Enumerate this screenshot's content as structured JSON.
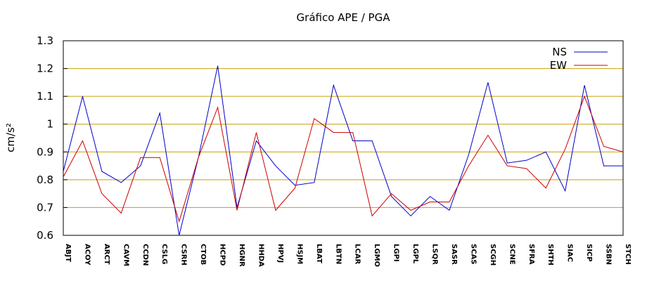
{
  "chart_data": {
    "type": "line",
    "title": "Gráfico  APE / PGA",
    "y_label": "cm/s²",
    "categories": [
      "ABJT",
      "ACOY",
      "ARCT",
      "CAVM",
      "CCDN",
      "CSLG",
      "CSRH",
      "CTOB",
      "HCPD",
      "HGNR",
      "HHDA",
      "HPVJ",
      "HSJM",
      "LBAT",
      "LBTN",
      "LCAR",
      "LGMO",
      "LGPI",
      "LGPL",
      "LSQR",
      "SASR",
      "SCAS",
      "SCGH",
      "SCNE",
      "SFRA",
      "SHTH",
      "SIAC",
      "SICP",
      "SSBN",
      "STCH"
    ],
    "series": [
      {
        "name": "NS",
        "color": "#0000cc",
        "values": [
          0.83,
          1.1,
          0.83,
          0.79,
          0.85,
          1.04,
          0.6,
          0.88,
          1.21,
          0.7,
          0.94,
          0.85,
          0.78,
          0.79,
          1.14,
          0.94,
          0.94,
          0.74,
          0.67,
          0.74,
          0.69,
          0.89,
          1.15,
          0.86,
          0.87,
          0.9,
          0.76,
          1.14,
          0.85,
          0.85
        ]
      },
      {
        "name": "EW",
        "color": "#cc0000",
        "values": [
          0.81,
          0.94,
          0.75,
          0.68,
          0.88,
          0.88,
          0.65,
          0.88,
          1.06,
          0.69,
          0.97,
          0.69,
          0.77,
          1.02,
          0.97,
          0.97,
          0.67,
          0.75,
          0.69,
          0.72,
          0.72,
          0.85,
          0.96,
          0.85,
          0.84,
          0.77,
          0.91,
          1.1,
          0.92,
          0.9
        ]
      }
    ],
    "ylim": [
      0.6,
      1.3
    ],
    "yticks": [
      0.6,
      0.7,
      0.8,
      0.9,
      1,
      1.1,
      1.2,
      1.3
    ],
    "grid": true,
    "grid_color": "#c8a000",
    "legend": "upper right"
  }
}
